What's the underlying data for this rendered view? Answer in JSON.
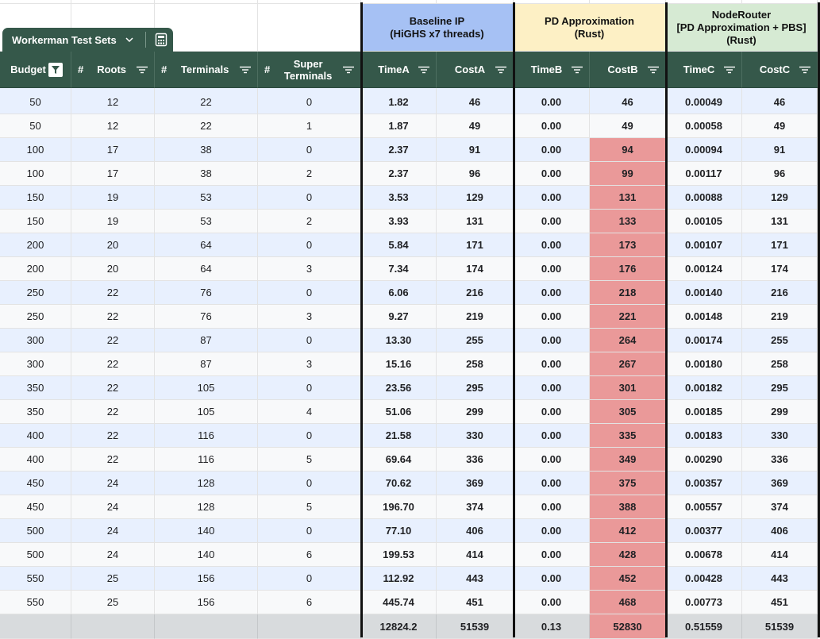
{
  "table_name": "Workerman Test Sets",
  "groups": [
    {
      "label": "Baseline IP\n(HiGHS x7 threads)",
      "color": "#a6c1f4"
    },
    {
      "label": "PD Approximation\n(Rust)",
      "color": "#fdf0c5"
    },
    {
      "label": "NodeRouter\n[PD Approximation + PBS]\n(Rust)",
      "color": "#d6ead3"
    }
  ],
  "columns": [
    {
      "label": "Budget",
      "hash": false,
      "filter": "active"
    },
    {
      "label": "Roots",
      "hash": true,
      "filter": "normal"
    },
    {
      "label": "Terminals",
      "hash": true,
      "filter": "normal"
    },
    {
      "label": "Super\nTerminals",
      "hash": true,
      "filter": "normal"
    },
    {
      "label": "TimeA",
      "hash": false,
      "filter": "normal"
    },
    {
      "label": "CostA",
      "hash": false,
      "filter": "normal"
    },
    {
      "label": "TimeB",
      "hash": false,
      "filter": "normal"
    },
    {
      "label": "CostB",
      "hash": false,
      "filter": "normal"
    },
    {
      "label": "TimeC",
      "hash": false,
      "filter": "normal"
    },
    {
      "label": "CostC",
      "hash": false,
      "filter": "normal"
    }
  ],
  "rows": [
    [
      "50",
      "12",
      "22",
      "0",
      "1.82",
      "46",
      "0.00",
      "46",
      "0.00049",
      "46"
    ],
    [
      "50",
      "12",
      "22",
      "1",
      "1.87",
      "49",
      "0.00",
      "49",
      "0.00058",
      "49"
    ],
    [
      "100",
      "17",
      "38",
      "0",
      "2.37",
      "91",
      "0.00",
      "94",
      "0.00094",
      "91"
    ],
    [
      "100",
      "17",
      "38",
      "2",
      "2.37",
      "96",
      "0.00",
      "99",
      "0.00117",
      "96"
    ],
    [
      "150",
      "19",
      "53",
      "0",
      "3.53",
      "129",
      "0.00",
      "131",
      "0.00088",
      "129"
    ],
    [
      "150",
      "19",
      "53",
      "2",
      "3.93",
      "131",
      "0.00",
      "133",
      "0.00105",
      "131"
    ],
    [
      "200",
      "20",
      "64",
      "0",
      "5.84",
      "171",
      "0.00",
      "173",
      "0.00107",
      "171"
    ],
    [
      "200",
      "20",
      "64",
      "3",
      "7.34",
      "174",
      "0.00",
      "176",
      "0.00124",
      "174"
    ],
    [
      "250",
      "22",
      "76",
      "0",
      "6.06",
      "216",
      "0.00",
      "218",
      "0.00140",
      "216"
    ],
    [
      "250",
      "22",
      "76",
      "3",
      "9.27",
      "219",
      "0.00",
      "221",
      "0.00148",
      "219"
    ],
    [
      "300",
      "22",
      "87",
      "0",
      "13.30",
      "255",
      "0.00",
      "264",
      "0.00174",
      "255"
    ],
    [
      "300",
      "22",
      "87",
      "3",
      "15.16",
      "258",
      "0.00",
      "267",
      "0.00180",
      "258"
    ],
    [
      "350",
      "22",
      "105",
      "0",
      "23.56",
      "295",
      "0.00",
      "301",
      "0.00182",
      "295"
    ],
    [
      "350",
      "22",
      "105",
      "4",
      "51.06",
      "299",
      "0.00",
      "305",
      "0.00185",
      "299"
    ],
    [
      "400",
      "22",
      "116",
      "0",
      "21.58",
      "330",
      "0.00",
      "335",
      "0.00183",
      "330"
    ],
    [
      "400",
      "22",
      "116",
      "5",
      "69.64",
      "336",
      "0.00",
      "349",
      "0.00290",
      "336"
    ],
    [
      "450",
      "24",
      "128",
      "0",
      "70.62",
      "369",
      "0.00",
      "375",
      "0.00357",
      "369"
    ],
    [
      "450",
      "24",
      "128",
      "5",
      "196.70",
      "374",
      "0.00",
      "388",
      "0.00557",
      "374"
    ],
    [
      "500",
      "24",
      "140",
      "0",
      "77.10",
      "406",
      "0.00",
      "412",
      "0.00377",
      "406"
    ],
    [
      "500",
      "24",
      "140",
      "6",
      "199.53",
      "414",
      "0.00",
      "428",
      "0.00678",
      "414"
    ],
    [
      "550",
      "25",
      "156",
      "0",
      "112.92",
      "443",
      "0.00",
      "452",
      "0.00428",
      "443"
    ],
    [
      "550",
      "25",
      "156",
      "6",
      "445.74",
      "451",
      "0.00",
      "468",
      "0.00773",
      "451"
    ]
  ],
  "totals": [
    "",
    "",
    "",
    "",
    "12824.2",
    "51539",
    "0.13",
    "52830",
    "0.51559",
    "51539"
  ],
  "colors": {
    "header_bg": "#35584a",
    "row_even": "#e8f0fe",
    "row_odd": "#f8f9fa",
    "highlight": "#ea9999",
    "footer_bg": "#d8dbdd"
  },
  "highlight_col": 7,
  "highlight_row_start": 2,
  "icons": [
    "filter-icon",
    "filter-active-icon",
    "chevron-down-icon",
    "calculator-icon"
  ]
}
